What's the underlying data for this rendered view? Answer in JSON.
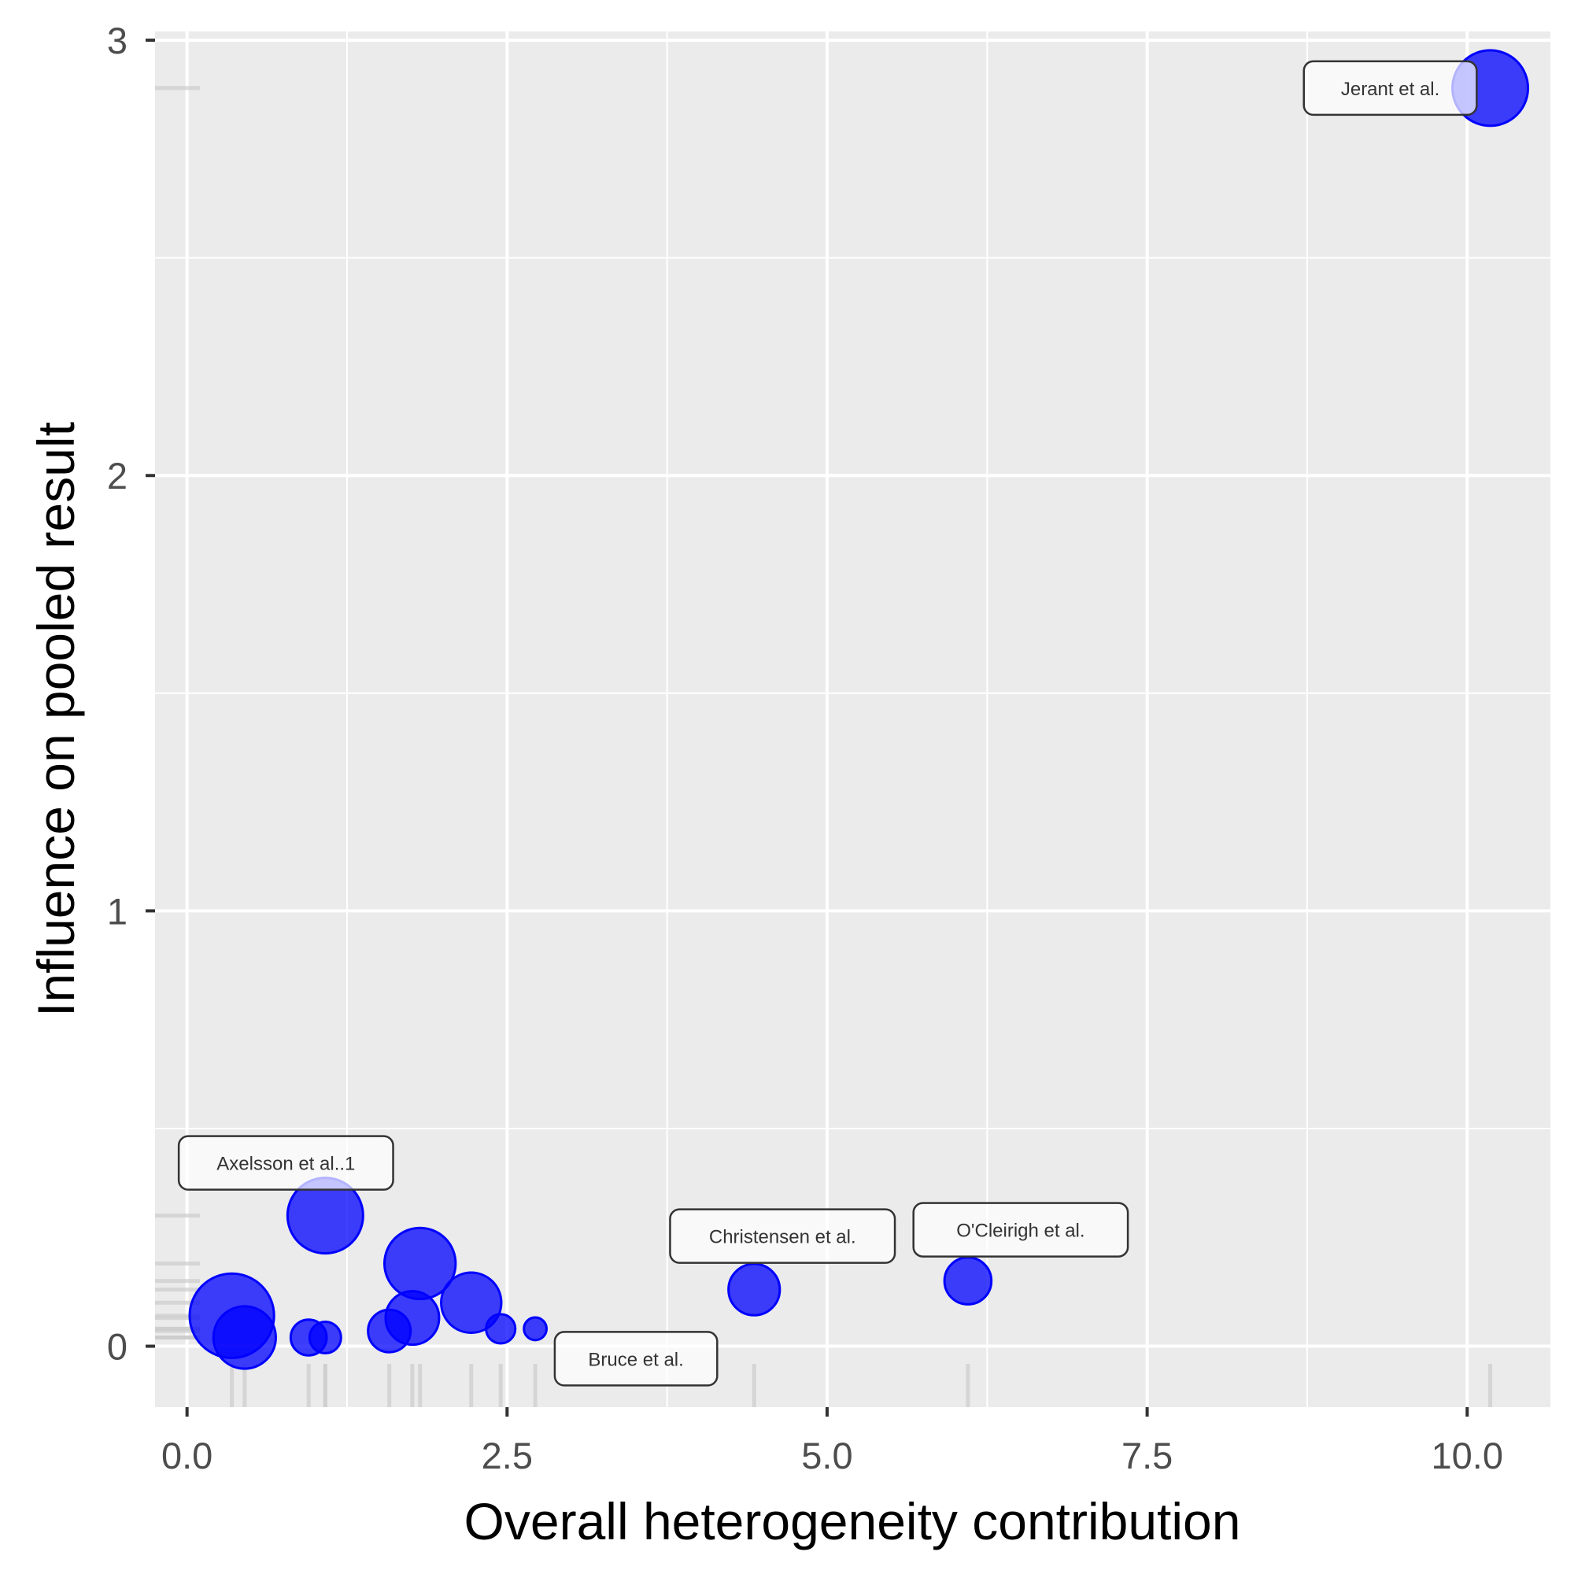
{
  "chart_data": {
    "type": "scatter",
    "title": "",
    "xlabel": "Overall heterogeneity contribution",
    "ylabel": "Influence on pooled result",
    "xlim": [
      -0.25,
      10.65
    ],
    "ylim": [
      -0.14,
      3.02
    ],
    "x_ticks": [
      0.0,
      2.5,
      5.0,
      7.5,
      10.0
    ],
    "x_tick_labels": [
      "0.0",
      "2.5",
      "5.0",
      "7.5",
      "10.0"
    ],
    "y_ticks": [
      0,
      1,
      2,
      3
    ],
    "y_tick_labels": [
      "0",
      "1",
      "2",
      "3"
    ],
    "grid": true,
    "legend": "none",
    "point_color": "#0000ff",
    "panel_color": "#ebebeb",
    "points": [
      {
        "x": 10.18,
        "y": 2.89,
        "size": 3.0,
        "label": "Jerant et al."
      },
      {
        "x": 1.08,
        "y": 0.3,
        "size": 3.0,
        "label": "Axelsson et al..1"
      },
      {
        "x": 0.35,
        "y": 0.07,
        "size": 3.4,
        "label": ""
      },
      {
        "x": 0.45,
        "y": 0.02,
        "size": 2.4,
        "label": ""
      },
      {
        "x": 0.95,
        "y": 0.02,
        "size": 1.2,
        "label": ""
      },
      {
        "x": 1.08,
        "y": 0.02,
        "size": 1.0,
        "label": ""
      },
      {
        "x": 1.58,
        "y": 0.035,
        "size": 1.5,
        "label": ""
      },
      {
        "x": 1.76,
        "y": 0.065,
        "size": 2.0,
        "label": ""
      },
      {
        "x": 1.82,
        "y": 0.19,
        "size": 2.8,
        "label": ""
      },
      {
        "x": 2.22,
        "y": 0.1,
        "size": 2.3,
        "label": ""
      },
      {
        "x": 2.45,
        "y": 0.04,
        "size": 0.9,
        "label": ""
      },
      {
        "x": 2.72,
        "y": 0.04,
        "size": 0.6,
        "label": "Bruce et al."
      },
      {
        "x": 4.43,
        "y": 0.13,
        "size": 1.9,
        "label": "Christensen et al."
      },
      {
        "x": 6.1,
        "y": 0.15,
        "size": 1.7,
        "label": "O'Cleirigh et al."
      }
    ]
  }
}
